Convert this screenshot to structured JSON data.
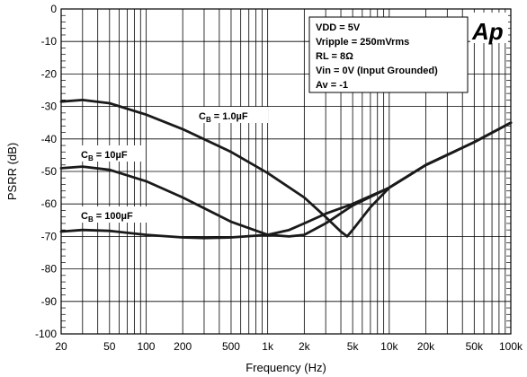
{
  "chart_data": {
    "type": "line",
    "xlabel": "Frequency (Hz)",
    "ylabel": "PSRR (dB)",
    "xscale": "log",
    "xlim": [
      20,
      100000
    ],
    "ylim": [
      -100,
      0
    ],
    "grid": true,
    "x_ticks": [
      {
        "value": 20,
        "label": "20"
      },
      {
        "value": 50,
        "label": "50"
      },
      {
        "value": 100,
        "label": "100"
      },
      {
        "value": 200,
        "label": "200"
      },
      {
        "value": 500,
        "label": "500"
      },
      {
        "value": 1000,
        "label": "1k"
      },
      {
        "value": 2000,
        "label": "2k"
      },
      {
        "value": 5000,
        "label": "5k"
      },
      {
        "value": 10000,
        "label": "10k"
      },
      {
        "value": 20000,
        "label": "20k"
      },
      {
        "value": 50000,
        "label": "50k"
      },
      {
        "value": 100000,
        "label": "100k"
      }
    ],
    "y_ticks": [
      0,
      -10,
      -20,
      -30,
      -40,
      -50,
      -60,
      -70,
      -80,
      -90,
      -100
    ],
    "conditions": [
      "VDD = 5V",
      "Vripple  = 250mVrms",
      "RL = 8Ω",
      "Vin = 0V (Input Grounded)",
      "Av = -1"
    ],
    "logo": "Ap",
    "series": [
      {
        "name": "CB = 1.0µF",
        "label_main": "C",
        "label_sub": "B",
        "label_rest": " = 1.0µF",
        "color": "#1a1a1a",
        "x": [
          20,
          30,
          50,
          100,
          200,
          500,
          1000,
          2000,
          3000,
          4000,
          4500,
          5000,
          7000,
          10000,
          20000,
          50000,
          100000
        ],
        "y": [
          -28.5,
          -28,
          -29,
          -32.5,
          -37,
          -44,
          -50.5,
          -58,
          -64,
          -68.5,
          -70,
          -68,
          -61,
          -55,
          -48,
          -41,
          -35
        ]
      },
      {
        "name": "CB = 10µF",
        "label_main": "C",
        "label_sub": "B",
        "label_rest": " = 10µF",
        "color": "#1a1a1a",
        "x": [
          20,
          30,
          50,
          100,
          200,
          500,
          1000,
          1500,
          2000,
          3000,
          5000,
          10000,
          20000,
          50000,
          100000
        ],
        "y": [
          -49,
          -48.5,
          -49.5,
          -53,
          -58,
          -65.5,
          -69.5,
          -70,
          -69.5,
          -66,
          -60.5,
          -55,
          -48,
          -41,
          -35
        ]
      },
      {
        "name": "CB = 100µF",
        "label_main": "C",
        "label_sub": "B",
        "label_rest": " = 100µF",
        "color": "#1a1a1a",
        "x": [
          20,
          30,
          50,
          100,
          200,
          300,
          500,
          1000,
          1500,
          2000,
          3000,
          5000,
          10000,
          20000,
          50000,
          100000
        ],
        "y": [
          -68.5,
          -68,
          -68.3,
          -69.5,
          -70.3,
          -70.5,
          -70.3,
          -69.5,
          -68,
          -66,
          -63,
          -60,
          -55,
          -48,
          -41,
          -35
        ]
      }
    ]
  }
}
